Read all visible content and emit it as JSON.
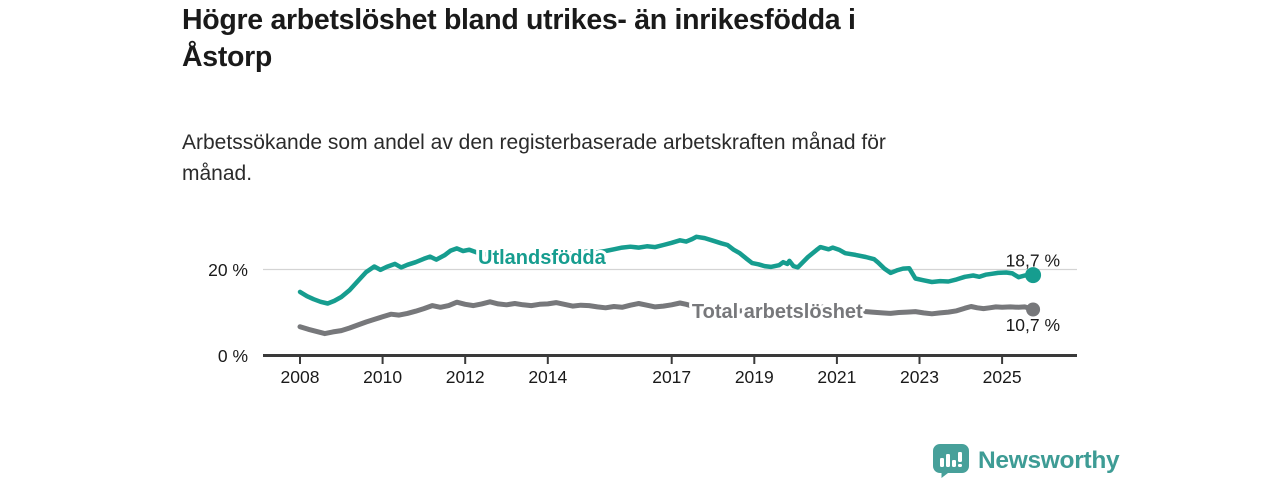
{
  "header": {
    "title": "Högre arbetslöshet bland utrikes- än inrikesfödda i\nÅstorp",
    "subtitle": "Arbetssökande som andel av den registerbaserade arbetskraften månad för\nmånad."
  },
  "branding": {
    "name": "Newsworthy",
    "icon": "bar-chart-speech-bubble",
    "color": "#47a09a"
  },
  "colors": {
    "foreign_born_line": "#169d8f",
    "total_line": "#77787b",
    "axis": "#3a3a3a",
    "gridline": "#d4d4d4",
    "text": "#1a1a1a"
  },
  "chart_data": {
    "type": "line",
    "title": "Högre arbetslöshet bland utrikes- än inrikesfödda i Åstorp",
    "subtitle": "Arbetssökande som andel av den registerbaserade arbetskraften månad för månad.",
    "unit": "%",
    "x_range": [
      2008.0,
      2025.75
    ],
    "ylim": [
      0,
      29
    ],
    "grid": "single-line-at-20",
    "legend_position": "inline-labels-on-lines",
    "x_ticks": [
      {
        "year": 2008,
        "label": "2008"
      },
      {
        "year": 2010,
        "label": "2010"
      },
      {
        "year": 2012,
        "label": "2012"
      },
      {
        "year": 2014,
        "label": "2014"
      },
      {
        "year": 2017,
        "label": "2017"
      },
      {
        "year": 2019,
        "label": "2019"
      },
      {
        "year": 2021,
        "label": "2021"
      },
      {
        "year": 2023,
        "label": "2023"
      },
      {
        "year": 2025,
        "label": "2025"
      }
    ],
    "y_ticks": [
      {
        "value": 20,
        "label": "20 %",
        "gridline": true
      },
      {
        "value": 0,
        "label": "0 %",
        "gridline": false
      }
    ],
    "series": [
      {
        "id": "utlandsfodda",
        "name": "Utlandsfödda",
        "color": "#169d8f",
        "end_value": 18.7,
        "end_label": "18,7 %",
        "label_year": 2012.31,
        "label_pct": 21.3,
        "points": [
          [
            2008.0,
            14.8
          ],
          [
            2008.17,
            13.8
          ],
          [
            2008.33,
            13.1
          ],
          [
            2008.5,
            12.5
          ],
          [
            2008.67,
            12.1
          ],
          [
            2008.83,
            12.7
          ],
          [
            2009.0,
            13.6
          ],
          [
            2009.2,
            15.2
          ],
          [
            2009.4,
            17.3
          ],
          [
            2009.6,
            19.4
          ],
          [
            2009.8,
            20.7
          ],
          [
            2009.95,
            19.9
          ],
          [
            2010.1,
            20.6
          ],
          [
            2010.3,
            21.3
          ],
          [
            2010.45,
            20.5
          ],
          [
            2010.6,
            21.1
          ],
          [
            2010.8,
            21.7
          ],
          [
            2011.0,
            22.5
          ],
          [
            2011.15,
            23.0
          ],
          [
            2011.3,
            22.3
          ],
          [
            2011.5,
            23.3
          ],
          [
            2011.65,
            24.4
          ],
          [
            2011.8,
            24.9
          ],
          [
            2011.95,
            24.3
          ],
          [
            2012.1,
            24.6
          ],
          [
            2012.3,
            23.9
          ],
          [
            2012.5,
            23.5
          ],
          [
            2012.65,
            24.1
          ],
          [
            2012.8,
            23.5
          ],
          [
            2013.0,
            23.9
          ],
          [
            2013.2,
            23.4
          ],
          [
            2013.4,
            23.7
          ],
          [
            2013.6,
            23.3
          ],
          [
            2013.8,
            23.6
          ],
          [
            2014.0,
            23.4
          ],
          [
            2014.2,
            23.8
          ],
          [
            2014.4,
            24.0
          ],
          [
            2014.6,
            23.7
          ],
          [
            2014.8,
            24.0
          ],
          [
            2015.0,
            24.2
          ],
          [
            2015.2,
            24.0
          ],
          [
            2015.4,
            24.3
          ],
          [
            2015.6,
            24.7
          ],
          [
            2015.8,
            25.1
          ],
          [
            2016.0,
            25.3
          ],
          [
            2016.2,
            25.1
          ],
          [
            2016.4,
            25.4
          ],
          [
            2016.6,
            25.2
          ],
          [
            2016.8,
            25.7
          ],
          [
            2017.0,
            26.2
          ],
          [
            2017.2,
            26.8
          ],
          [
            2017.35,
            26.5
          ],
          [
            2017.5,
            27.1
          ],
          [
            2017.6,
            27.6
          ],
          [
            2017.8,
            27.3
          ],
          [
            2018.0,
            26.7
          ],
          [
            2018.2,
            26.1
          ],
          [
            2018.35,
            25.7
          ],
          [
            2018.5,
            24.6
          ],
          [
            2018.65,
            23.8
          ],
          [
            2018.8,
            22.6
          ],
          [
            2018.95,
            21.5
          ],
          [
            2019.1,
            21.2
          ],
          [
            2019.25,
            20.8
          ],
          [
            2019.4,
            20.6
          ],
          [
            2019.6,
            21.0
          ],
          [
            2019.7,
            21.7
          ],
          [
            2019.8,
            21.3
          ],
          [
            2019.85,
            22.0
          ],
          [
            2019.95,
            20.8
          ],
          [
            2020.05,
            20.5
          ],
          [
            2020.3,
            22.9
          ],
          [
            2020.5,
            24.5
          ],
          [
            2020.6,
            25.2
          ],
          [
            2020.8,
            24.7
          ],
          [
            2020.9,
            25.1
          ],
          [
            2021.05,
            24.6
          ],
          [
            2021.2,
            23.8
          ],
          [
            2021.45,
            23.4
          ],
          [
            2021.7,
            22.9
          ],
          [
            2021.9,
            22.4
          ],
          [
            2022.0,
            21.6
          ],
          [
            2022.15,
            20.2
          ],
          [
            2022.3,
            19.2
          ],
          [
            2022.45,
            19.8
          ],
          [
            2022.6,
            20.2
          ],
          [
            2022.75,
            20.3
          ],
          [
            2022.9,
            17.9
          ],
          [
            2023.1,
            17.5
          ],
          [
            2023.3,
            17.1
          ],
          [
            2023.5,
            17.3
          ],
          [
            2023.7,
            17.2
          ],
          [
            2023.9,
            17.7
          ],
          [
            2024.1,
            18.3
          ],
          [
            2024.3,
            18.6
          ],
          [
            2024.45,
            18.3
          ],
          [
            2024.6,
            18.8
          ],
          [
            2024.75,
            19.0
          ],
          [
            2024.9,
            19.2
          ],
          [
            2025.1,
            19.3
          ],
          [
            2025.25,
            19.1
          ],
          [
            2025.4,
            18.2
          ],
          [
            2025.55,
            18.6
          ],
          [
            2025.75,
            18.7
          ]
        ]
      },
      {
        "id": "total-arbetsloshet",
        "name": "Total arbetslöshet",
        "color": "#77787b",
        "end_value": 10.7,
        "end_label": "10,7 %",
        "label_year": 2017.49,
        "label_pct": 8.7,
        "points": [
          [
            2008.0,
            6.7
          ],
          [
            2008.2,
            6.1
          ],
          [
            2008.4,
            5.6
          ],
          [
            2008.6,
            5.1
          ],
          [
            2008.8,
            5.5
          ],
          [
            2009.0,
            5.8
          ],
          [
            2009.2,
            6.4
          ],
          [
            2009.4,
            7.1
          ],
          [
            2009.6,
            7.8
          ],
          [
            2009.8,
            8.4
          ],
          [
            2010.0,
            9.0
          ],
          [
            2010.2,
            9.6
          ],
          [
            2010.4,
            9.4
          ],
          [
            2010.6,
            9.8
          ],
          [
            2010.8,
            10.3
          ],
          [
            2011.0,
            10.9
          ],
          [
            2011.2,
            11.6
          ],
          [
            2011.4,
            11.2
          ],
          [
            2011.6,
            11.6
          ],
          [
            2011.8,
            12.4
          ],
          [
            2012.0,
            11.9
          ],
          [
            2012.2,
            11.6
          ],
          [
            2012.4,
            12.0
          ],
          [
            2012.6,
            12.5
          ],
          [
            2012.8,
            12.0
          ],
          [
            2013.0,
            11.8
          ],
          [
            2013.2,
            12.1
          ],
          [
            2013.4,
            11.8
          ],
          [
            2013.6,
            11.6
          ],
          [
            2013.8,
            11.9
          ],
          [
            2014.0,
            12.0
          ],
          [
            2014.2,
            12.3
          ],
          [
            2014.4,
            11.9
          ],
          [
            2014.6,
            11.5
          ],
          [
            2014.8,
            11.7
          ],
          [
            2015.0,
            11.6
          ],
          [
            2015.2,
            11.3
          ],
          [
            2015.4,
            11.1
          ],
          [
            2015.6,
            11.4
          ],
          [
            2015.8,
            11.2
          ],
          [
            2016.0,
            11.7
          ],
          [
            2016.2,
            12.1
          ],
          [
            2016.4,
            11.7
          ],
          [
            2016.6,
            11.3
          ],
          [
            2016.8,
            11.5
          ],
          [
            2017.0,
            11.8
          ],
          [
            2017.2,
            12.2
          ],
          [
            2017.35,
            11.9
          ],
          [
            2017.5,
            11.5
          ],
          [
            2017.7,
            11.2
          ],
          [
            2017.9,
            11.0
          ],
          [
            2018.1,
            10.8
          ],
          [
            2018.35,
            10.6
          ],
          [
            2018.6,
            10.4
          ],
          [
            2018.85,
            10.3
          ],
          [
            2019.1,
            10.2
          ],
          [
            2019.35,
            10.1
          ],
          [
            2019.6,
            10.0
          ],
          [
            2019.85,
            10.2
          ],
          [
            2020.1,
            10.6
          ],
          [
            2020.35,
            11.0
          ],
          [
            2020.6,
            11.3
          ],
          [
            2020.85,
            11.1
          ],
          [
            2021.1,
            10.8
          ],
          [
            2021.35,
            10.5
          ],
          [
            2021.6,
            10.3
          ],
          [
            2021.85,
            10.1
          ],
          [
            2022.1,
            9.9
          ],
          [
            2022.3,
            9.8
          ],
          [
            2022.5,
            10.0
          ],
          [
            2022.7,
            10.1
          ],
          [
            2022.9,
            10.2
          ],
          [
            2023.1,
            9.9
          ],
          [
            2023.3,
            9.7
          ],
          [
            2023.5,
            9.9
          ],
          [
            2023.7,
            10.1
          ],
          [
            2023.9,
            10.4
          ],
          [
            2024.1,
            11.0
          ],
          [
            2024.25,
            11.4
          ],
          [
            2024.4,
            11.1
          ],
          [
            2024.55,
            10.9
          ],
          [
            2024.7,
            11.1
          ],
          [
            2024.85,
            11.3
          ],
          [
            2025.0,
            11.2
          ],
          [
            2025.2,
            11.3
          ],
          [
            2025.4,
            11.2
          ],
          [
            2025.55,
            11.3
          ],
          [
            2025.75,
            10.7
          ]
        ]
      }
    ]
  }
}
